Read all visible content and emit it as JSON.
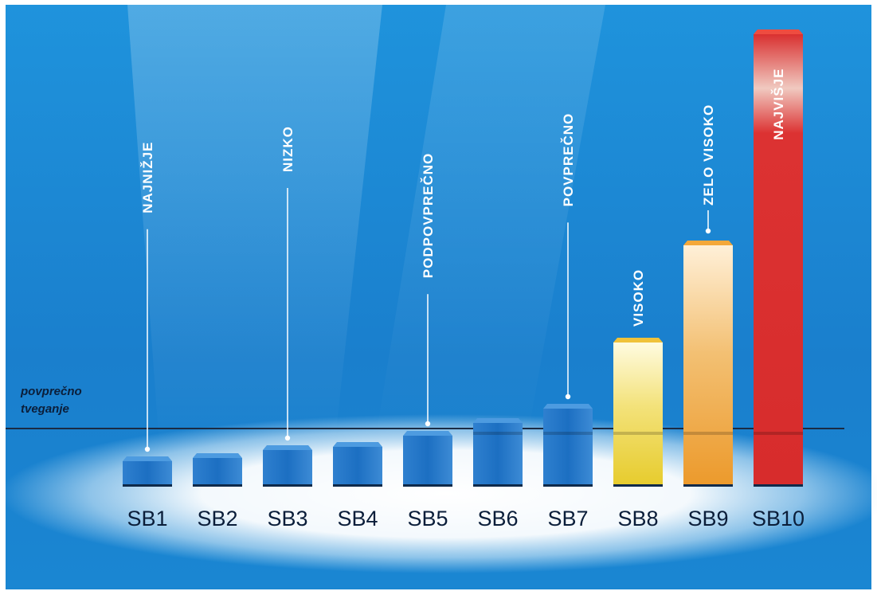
{
  "chart_data": {
    "type": "bar",
    "categories": [
      "SB1",
      "SB2",
      "SB3",
      "SB4",
      "SB5",
      "SB6",
      "SB7",
      "SB8",
      "SB9",
      "SB10"
    ],
    "values": [
      29,
      33,
      43,
      47,
      61,
      77,
      95,
      178,
      300,
      565
    ],
    "risk_labels": [
      {
        "index": 0,
        "text": "NAJNIŽJE"
      },
      {
        "index": 2,
        "text": "NIZKO"
      },
      {
        "index": 4,
        "text": "PODPOVPREČNO"
      },
      {
        "index": 6,
        "text": "POVPREČNO"
      },
      {
        "index": 7,
        "text": "VISOKO"
      },
      {
        "index": 8,
        "text": "ZELO VISOKO"
      },
      {
        "index": 9,
        "text": "NAJVIŠJE"
      }
    ],
    "reference_line": {
      "value": 70,
      "label_line1": "povprečno",
      "label_line2": "tveganje"
    },
    "colors": {
      "background": "#1a8fd8",
      "blue_bar": "#1c6fc2",
      "visoko": "#e9d038",
      "zelo_visoko": "#efa030",
      "najvisje": "#dc3030",
      "text_dark": "#0b1e3a"
    }
  }
}
